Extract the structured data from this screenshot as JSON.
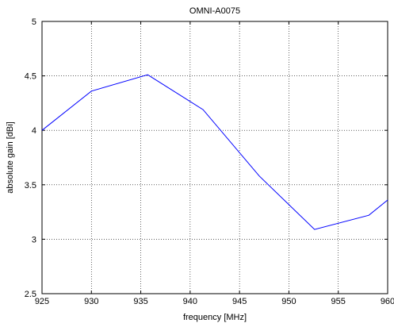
{
  "chart_data": {
    "type": "line",
    "title": "OMNI-A0075",
    "xlabel": "frequency [MHz]",
    "ylabel": "absolute gain [dBi]",
    "xlim": [
      925,
      960
    ],
    "ylim": [
      2.5,
      5
    ],
    "x_ticks": [
      925,
      930,
      935,
      940,
      945,
      950,
      955,
      960
    ],
    "x_tick_labels": [
      "925",
      "930",
      "935",
      "940",
      "945",
      "950",
      "955",
      "960"
    ],
    "y_ticks": [
      2.5,
      3,
      3.5,
      4,
      4.5,
      5
    ],
    "y_tick_labels": [
      "2.5",
      "3",
      "3.5",
      "4",
      "4.5",
      "5"
    ],
    "grid": true,
    "legend": "none",
    "series": [
      {
        "color": "#0000ff",
        "x": [
          925,
          930.0,
          935.7,
          941.3,
          947.0,
          952.6,
          958.1,
          960
        ],
        "y": [
          4.0,
          4.36,
          4.51,
          4.19,
          3.58,
          3.09,
          3.22,
          3.36
        ]
      }
    ]
  }
}
